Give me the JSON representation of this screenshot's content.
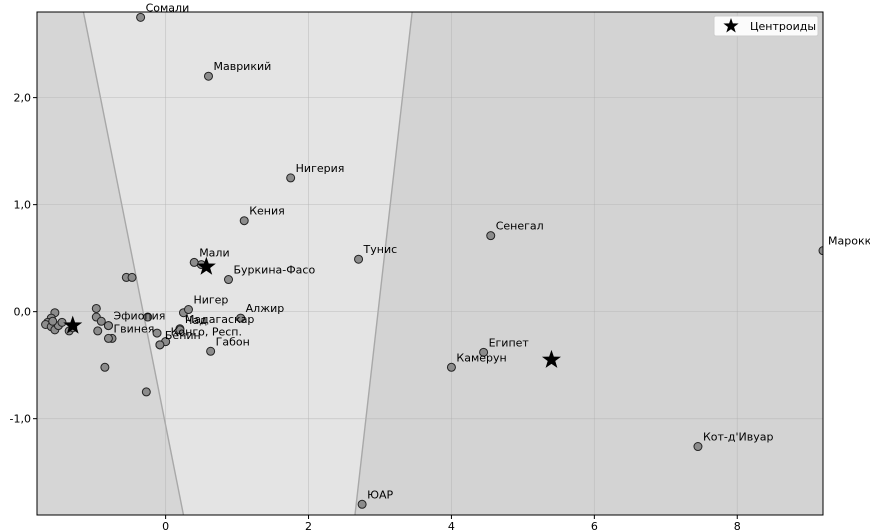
{
  "chart_data": {
    "type": "scatter",
    "title": "",
    "xlabel": "",
    "ylabel": "",
    "xlim": [
      -1.8,
      9.2
    ],
    "ylim": [
      -1.9,
      2.8
    ],
    "x_ticks": [
      0,
      2,
      4,
      6,
      8
    ],
    "x_tick_labels": [
      "0",
      "2",
      "4",
      "6",
      "8"
    ],
    "y_ticks": [
      -1,
      0,
      1,
      2
    ],
    "y_tick_labels": [
      "-1,0",
      "0,0",
      "1,0",
      "2,0"
    ],
    "grid": true,
    "legend": {
      "position": "top-right",
      "entries": [
        "Центроиды"
      ]
    },
    "colors": {
      "region_left": "#d6d6d6",
      "region_middle": "#e4e4e4",
      "region_right": "#d3d3d3",
      "point_fill": "#8c8c8c",
      "centroid": "#000000"
    },
    "regions": [
      {
        "name": "cluster-1",
        "boundary_right": [
          [
            -1.15,
            2.8
          ],
          [
            0.25,
            -1.9
          ]
        ]
      },
      {
        "name": "cluster-2"
      },
      {
        "name": "cluster-3",
        "boundary_left": [
          [
            3.45,
            2.8
          ],
          [
            2.65,
            -1.9
          ]
        ]
      }
    ],
    "labeled_points": [
      {
        "label": "Сомали",
        "x": -0.35,
        "y": 2.75
      },
      {
        "label": "Маврикий",
        "x": 0.6,
        "y": 2.2
      },
      {
        "label": "Нигерия",
        "x": 1.75,
        "y": 1.25
      },
      {
        "label": "Кения",
        "x": 1.1,
        "y": 0.85
      },
      {
        "label": "Мали",
        "x": 0.4,
        "y": 0.46
      },
      {
        "label": "Буркина-Фасо",
        "x": 0.88,
        "y": 0.3
      },
      {
        "label": "Тунис",
        "x": 2.7,
        "y": 0.49
      },
      {
        "label": "Сенегал",
        "x": 4.55,
        "y": 0.71
      },
      {
        "label": "Марокко",
        "x": 9.2,
        "y": 0.57
      },
      {
        "label": "Эфиопия",
        "x": -0.8,
        "y": -0.13
      },
      {
        "label": "Гвинея",
        "x": -0.8,
        "y": -0.25
      },
      {
        "label": "Нигер",
        "x": 0.32,
        "y": 0.02
      },
      {
        "label": "Мадагаскар",
        "x": 0.2,
        "y": -0.16
      },
      {
        "label": "Алжир",
        "x": 1.05,
        "y": -0.06
      },
      {
        "label": "Чад",
        "x": 0.2,
        "y": -0.17
      },
      {
        "label": "Конго, Респ.",
        "x": 0.0,
        "y": -0.28
      },
      {
        "label": "Бенин",
        "x": -0.08,
        "y": -0.31
      },
      {
        "label": "Габон",
        "x": 0.63,
        "y": -0.37
      },
      {
        "label": "Египет",
        "x": 4.45,
        "y": -0.38
      },
      {
        "label": "Камерун",
        "x": 4.0,
        "y": -0.52
      },
      {
        "label": "Кот-д'Ивуар",
        "x": 7.45,
        "y": -1.26
      },
      {
        "label": "ЮАР",
        "x": 2.75,
        "y": -1.8
      }
    ],
    "unlabeled_points": [
      [
        -1.55,
        -0.01
      ],
      [
        -1.6,
        -0.06
      ],
      [
        -1.65,
        -0.1
      ],
      [
        -1.68,
        -0.12
      ],
      [
        -1.6,
        -0.14
      ],
      [
        -1.55,
        -0.17
      ],
      [
        -1.5,
        -0.13
      ],
      [
        -1.45,
        -0.1
      ],
      [
        -1.35,
        -0.18
      ],
      [
        -1.3,
        -0.15
      ],
      [
        -1.58,
        -0.09
      ],
      [
        -0.97,
        0.03
      ],
      [
        -0.97,
        -0.05
      ],
      [
        -0.95,
        -0.18
      ],
      [
        -0.9,
        -0.09
      ],
      [
        -0.85,
        -0.52
      ],
      [
        -0.8,
        -0.13
      ],
      [
        -0.75,
        -0.25
      ],
      [
        -0.55,
        0.32
      ],
      [
        -0.47,
        0.32
      ],
      [
        -0.27,
        -0.75
      ],
      [
        -0.25,
        -0.05
      ],
      [
        -0.12,
        -0.2
      ],
      [
        -0.08,
        -0.31
      ],
      [
        0.0,
        -0.28
      ],
      [
        0.25,
        -0.01
      ],
      [
        0.5,
        0.44
      ]
    ],
    "centroids": [
      {
        "x": -1.3,
        "y": -0.13
      },
      {
        "x": 0.57,
        "y": 0.42
      },
      {
        "x": 5.4,
        "y": -0.45
      }
    ]
  }
}
